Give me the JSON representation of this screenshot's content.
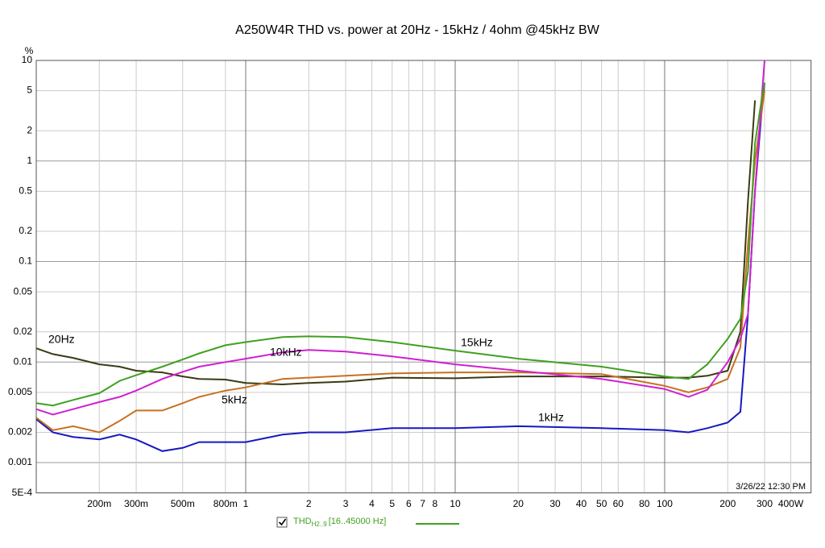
{
  "chart_data": {
    "type": "line",
    "title": "A250W4R  THD vs. power at 20Hz - 15kHz / 4ohm  @45kHz BW",
    "y_unit": "%",
    "xscale": "log",
    "yscale": "log",
    "grid": true,
    "xlim": [
      0.1,
      500
    ],
    "ylim": [
      0.0005,
      10
    ],
    "xticks": [
      {
        "value": 0.2,
        "label": "200m"
      },
      {
        "value": 0.3,
        "label": "300m"
      },
      {
        "value": 0.5,
        "label": "500m"
      },
      {
        "value": 0.8,
        "label": "800m"
      },
      1,
      2,
      3,
      4,
      5,
      6,
      7,
      8,
      10,
      20,
      30,
      40,
      50,
      60,
      80,
      100,
      200,
      300,
      {
        "value": 400,
        "label": "400W"
      }
    ],
    "yticks": [
      {
        "value": 0.0005,
        "label": "5E-4"
      },
      0.001,
      0.002,
      0.005,
      0.01,
      0.02,
      0.05,
      0.1,
      0.2,
      0.5,
      1,
      2,
      5,
      10
    ],
    "x": [
      0.1,
      0.12,
      0.15,
      0.2,
      0.25,
      0.3,
      0.4,
      0.5,
      0.6,
      0.8,
      1,
      1.5,
      2,
      3,
      5,
      10,
      20,
      50,
      100,
      130,
      160,
      200,
      230,
      250,
      270,
      290,
      300
    ],
    "series": [
      {
        "name": "20Hz",
        "color": "#3b3a14",
        "values": [
          0.0137,
          0.012,
          0.011,
          0.0095,
          0.009,
          0.0082,
          0.0079,
          0.0072,
          0.0068,
          0.0067,
          0.0062,
          0.006,
          0.0062,
          0.0064,
          0.007,
          0.0069,
          0.0072,
          0.0072,
          0.007,
          0.007,
          0.0073,
          0.0082,
          0.02,
          0.4,
          4,
          null,
          null
        ]
      },
      {
        "name": "1kHz",
        "color": "#1818c0",
        "values": [
          0.0027,
          0.002,
          0.0018,
          0.0017,
          0.0019,
          0.0017,
          0.0013,
          0.0014,
          0.0016,
          0.0016,
          0.0016,
          0.0019,
          0.002,
          0.002,
          0.0022,
          0.0022,
          0.0023,
          0.0022,
          0.0021,
          0.002,
          0.0022,
          0.0025,
          0.0032,
          0.03,
          0.5,
          3,
          6
        ]
      },
      {
        "name": "5kHz",
        "color": "#c87020",
        "values": [
          0.0028,
          0.0021,
          0.0023,
          0.002,
          0.0026,
          0.0033,
          0.0033,
          0.0039,
          0.0045,
          0.0052,
          0.0056,
          0.0068,
          0.007,
          0.0073,
          0.0077,
          0.0079,
          0.0079,
          0.0076,
          0.0058,
          0.005,
          0.0056,
          0.0068,
          0.014,
          0.15,
          1,
          3,
          5
        ]
      },
      {
        "name": "10kHz",
        "color": "#d020d0",
        "values": [
          0.0034,
          0.003,
          0.0034,
          0.004,
          0.0045,
          0.0052,
          0.0068,
          0.008,
          0.009,
          0.01,
          0.0108,
          0.0125,
          0.0132,
          0.0127,
          0.0114,
          0.0095,
          0.0082,
          0.0068,
          0.0054,
          0.0045,
          0.0053,
          0.01,
          0.017,
          0.03,
          0.5,
          4,
          10
        ]
      },
      {
        "name": "15kHz",
        "color": "#40a020",
        "values": [
          0.0039,
          0.0037,
          0.0042,
          0.0049,
          0.0065,
          0.0074,
          0.009,
          0.0106,
          0.0122,
          0.0147,
          0.0158,
          0.0177,
          0.018,
          0.0177,
          0.0158,
          0.013,
          0.0108,
          0.009,
          0.0072,
          0.0068,
          0.0095,
          0.017,
          0.027,
          0.08,
          1.5,
          4,
          6
        ]
      }
    ],
    "timestamp": "3/26/22 12:30 PM",
    "legend": {
      "label": "THD",
      "subscript": "H2..9",
      "range": "[16..45000 Hz]",
      "color": "#40a020"
    }
  }
}
